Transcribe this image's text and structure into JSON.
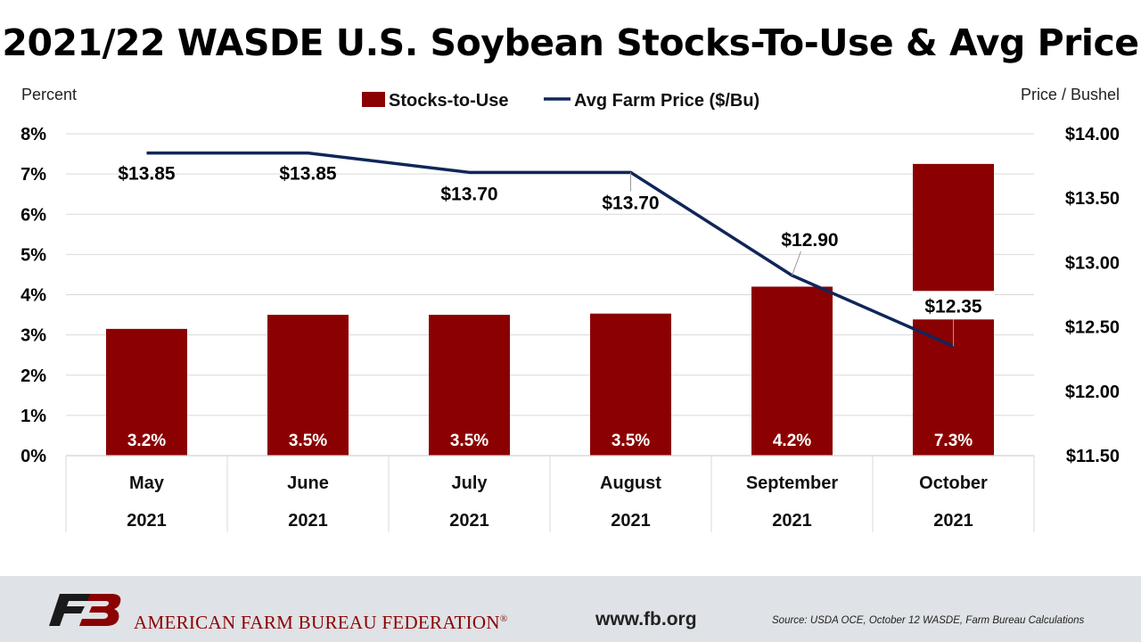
{
  "chart_data": {
    "type": "bar",
    "title": "2021/22 WASDE U.S. Soybean Stocks-To-Use & Avg Price",
    "ylabel_left": "Percent",
    "ylabel_right": "Price / Bushel",
    "categories": [
      "May",
      "June",
      "July",
      "August",
      "September",
      "October"
    ],
    "category_years": [
      "2021",
      "2021",
      "2021",
      "2021",
      "2021",
      "2021"
    ],
    "series": [
      {
        "name": "Stocks-to-Use",
        "type": "bar",
        "axis": "left",
        "color": "#8b0000",
        "values": [
          3.15,
          3.5,
          3.5,
          3.53,
          4.2,
          7.25
        ],
        "labels": [
          "3.2%",
          "3.5%",
          "3.5%",
          "3.5%",
          "4.2%",
          "7.3%"
        ]
      },
      {
        "name": "Avg Farm Price ($/Bu)",
        "type": "line",
        "axis": "right",
        "color": "#10265a",
        "values": [
          13.85,
          13.85,
          13.7,
          13.7,
          12.9,
          12.35
        ],
        "labels": [
          "$13.85",
          "$13.85",
          "$13.70",
          "$13.70",
          "$12.90",
          "$12.35"
        ]
      }
    ],
    "ylim_left": [
      0,
      8
    ],
    "yticks_left": [
      "0%",
      "1%",
      "2%",
      "3%",
      "4%",
      "5%",
      "6%",
      "7%",
      "8%"
    ],
    "ylim_right": [
      11.5,
      14.0
    ],
    "yticks_right": [
      "$11.50",
      "$12.00",
      "$12.50",
      "$13.00",
      "$13.50",
      "$14.00"
    ],
    "grid": true,
    "legend_position": "top-center"
  },
  "footer": {
    "organization": "AMERICAN FARM BUREAU FEDERATION",
    "registered_mark": "®",
    "website": "www.fb.org",
    "source": "Source: USDA OCE, October 12 WASDE, Farm Bureau Calculations",
    "brand_color": "#8b0000"
  }
}
